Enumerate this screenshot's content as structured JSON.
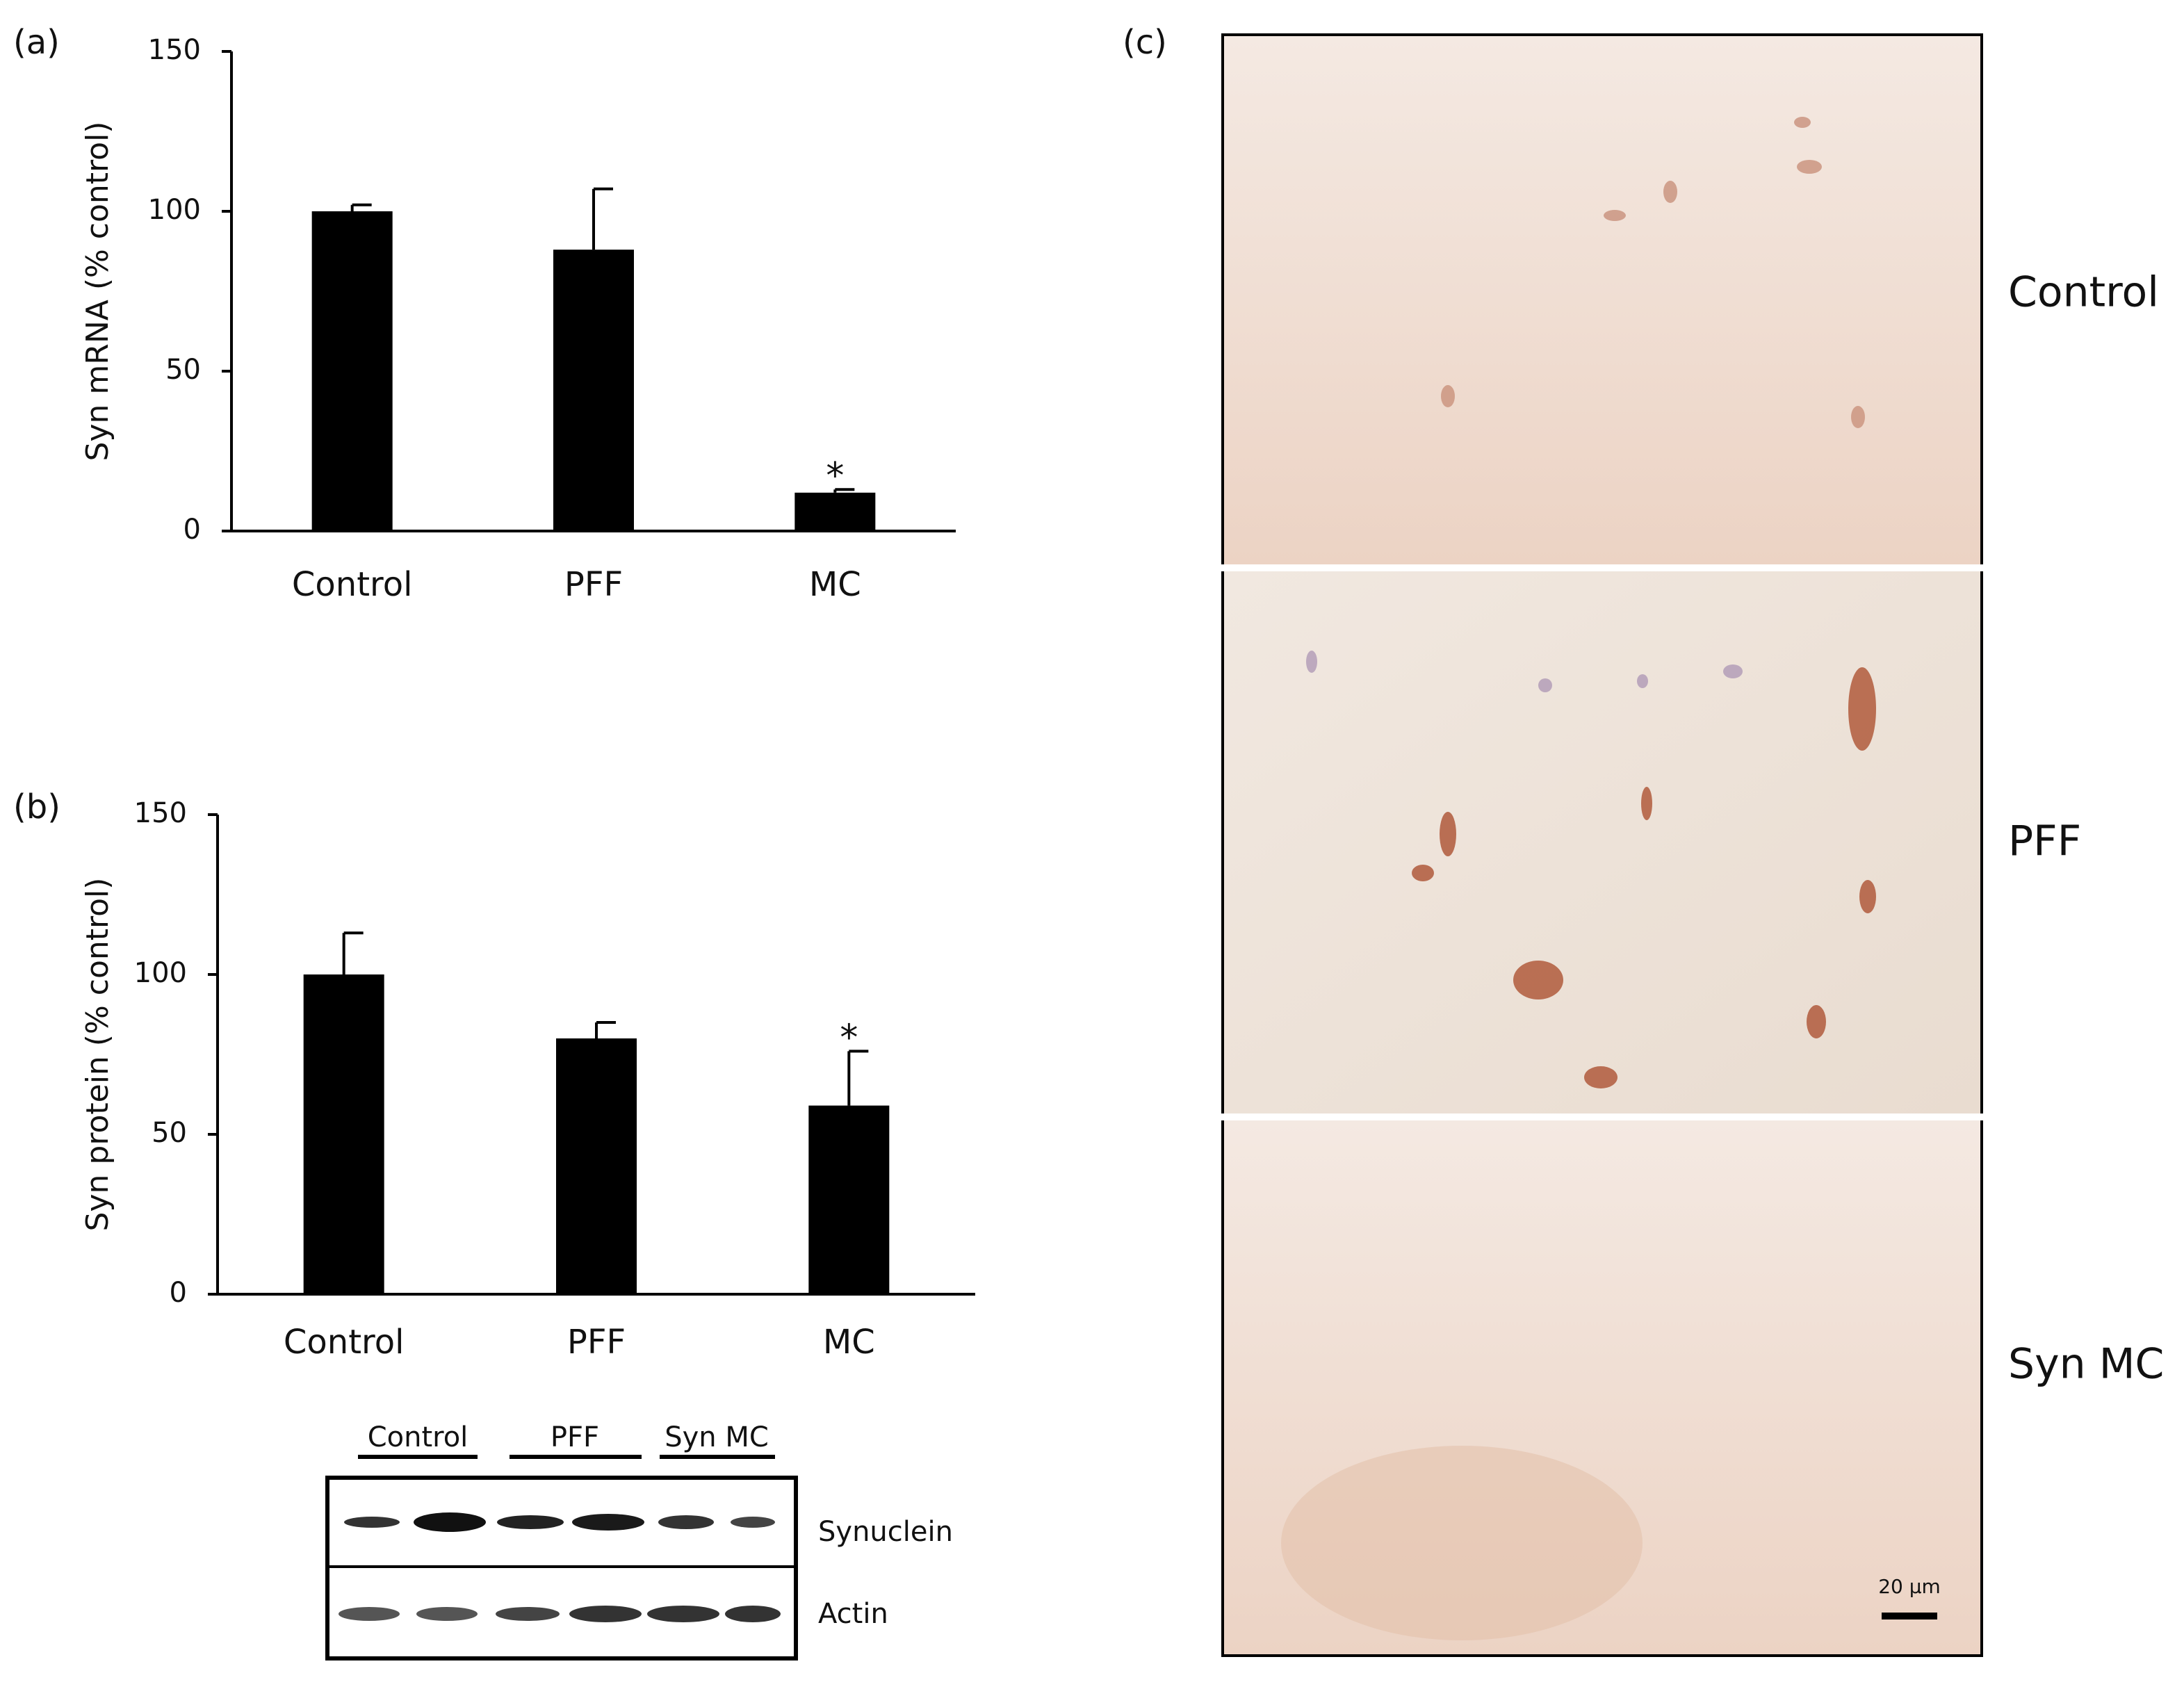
{
  "panel_labels": [
    "(a)",
    "(b)",
    "(c)"
  ],
  "chart_data": [
    {
      "type": "bar",
      "ylabel": "Syn mRNA (% control)",
      "categories": [
        "Control",
        "PFF",
        "MC"
      ],
      "values": [
        100,
        88,
        12
      ],
      "errors": [
        2,
        19,
        1
      ],
      "color": "#000000",
      "annotations": [
        {
          "category": "MC",
          "text": "*"
        }
      ],
      "ylim": [
        0,
        150
      ],
      "yticks": [
        0,
        50,
        100,
        150
      ]
    },
    {
      "type": "bar",
      "ylabel": "Syn protein (% control)",
      "categories": [
        "Control",
        "PFF",
        "MC"
      ],
      "values": [
        100,
        80,
        59
      ],
      "errors": [
        13,
        5,
        17
      ],
      "color": "#000000",
      "annotations": [
        {
          "category": "MC",
          "text": "*"
        }
      ],
      "ylim": [
        0,
        150
      ],
      "yticks": [
        0,
        50,
        100,
        150
      ]
    }
  ],
  "blot": {
    "groups": [
      "Control",
      "PFF",
      "Syn MC"
    ],
    "rows": [
      "Synuclein",
      "Actin"
    ]
  },
  "micrograph": {
    "labels": [
      "Control",
      "PFF",
      "Syn MC"
    ],
    "scale_bar": "20 µm"
  }
}
